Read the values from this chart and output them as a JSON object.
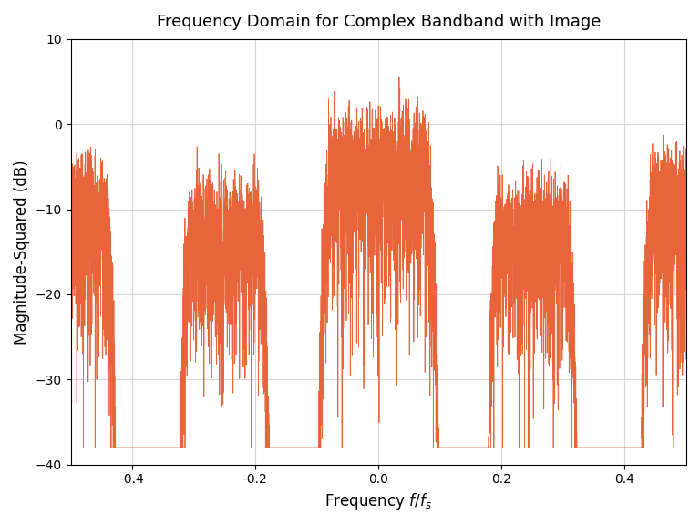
{
  "title": "Frequency Domain for Complex Bandband with Image",
  "xlabel": "Frequency $f/f_s$",
  "ylabel": "Magnitude-Squared (dB)",
  "line_color": "#E8643A",
  "line_width": 0.6,
  "ylim": [
    -40,
    10
  ],
  "xlim": [
    -0.5,
    0.5
  ],
  "yticks": [
    -40,
    -30,
    -20,
    -10,
    0,
    10
  ],
  "xticks": [
    -0.4,
    -0.2,
    0.0,
    0.2,
    0.4
  ],
  "grid_color": "#cccccc",
  "background_color": "#ffffff",
  "noise_floor": -38,
  "n_fft": 8192,
  "seed": 42,
  "main_bw": 0.2,
  "main_amplitude": 1.0,
  "image_bw": 0.15,
  "image_fc": 0.25,
  "image_amplitude": 0.55,
  "edge_bw": 0.15,
  "edge_amplitude": 0.8,
  "noise_amplitude": 0.001,
  "peak_db": 5.5
}
